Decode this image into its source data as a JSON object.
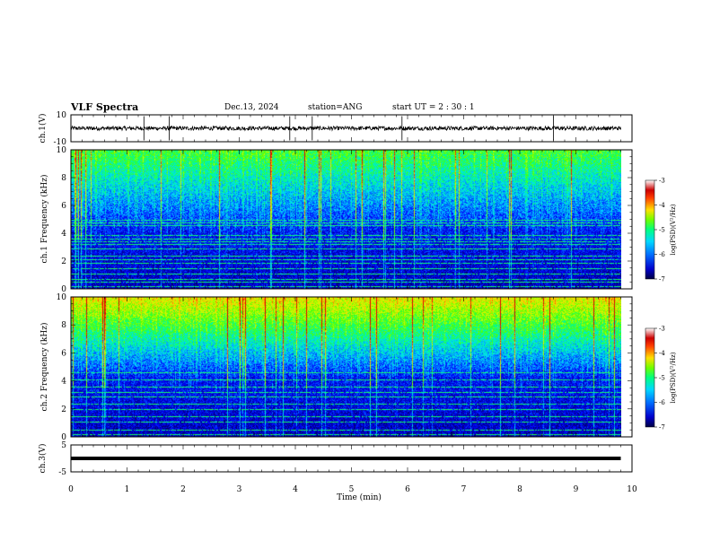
{
  "header": {
    "title": "VLF Spectra",
    "date": "Dec.13, 2024",
    "station": "station=ANG",
    "start": "start  UT =   2 : 30 : 1"
  },
  "chart_data": [
    {
      "type": "line",
      "name": "ch1-waveform",
      "ylabel": "ch.1(V)",
      "ylim": [
        -10,
        10
      ],
      "yticks": [
        "10",
        "-10"
      ],
      "xlim": [
        0,
        10
      ],
      "level": 0,
      "amplitude": 1.5,
      "spike_minutes": [
        1.3,
        1.75,
        3.9,
        4.3,
        5.9,
        8.6
      ]
    },
    {
      "type": "heatmap",
      "name": "ch1-spectrogram",
      "ylabel": "ch.1 Frequency (kHz)",
      "ylim": [
        0,
        10
      ],
      "yticks": [
        "0",
        "2",
        "4",
        "6",
        "8",
        "10"
      ],
      "xlim": [
        0,
        9.8
      ],
      "colorbar": {
        "label": "log(PSD)(V²/Hz)",
        "range": [
          -7,
          -3
        ],
        "ticks": [
          "-3",
          "-4",
          "-5",
          "-6",
          "-7"
        ]
      },
      "lines_khz": [
        0.2,
        0.5,
        0.7,
        1.1,
        1.5,
        1.9,
        2.1,
        2.4,
        2.9,
        3.2,
        3.4,
        3.6,
        3.9,
        4.6,
        4.8,
        5.0
      ]
    },
    {
      "type": "heatmap",
      "name": "ch2-spectrogram",
      "ylabel": "ch.2 Frequency (kHz)",
      "ylim": [
        0,
        10
      ],
      "yticks": [
        "0",
        "2",
        "4",
        "6",
        "8",
        "10"
      ],
      "xlim": [
        0,
        9.8
      ],
      "colorbar": {
        "label": "log(PSD)(V²/Hz)",
        "range": [
          -7,
          -3
        ],
        "ticks": [
          "-3",
          "-4",
          "-5",
          "-6",
          "-7"
        ]
      },
      "lines_khz": [
        0.2,
        0.5,
        1.1,
        1.5,
        2.0,
        2.4,
        2.9,
        3.2,
        3.6,
        4.1,
        4.6
      ]
    },
    {
      "type": "line",
      "name": "ch3-waveform",
      "ylabel": "ch.3(V)",
      "ylim": [
        -5,
        5
      ],
      "yticks": [
        "5",
        "-5"
      ],
      "xlim": [
        0,
        10
      ],
      "level": 0,
      "amplitude": 0.2
    }
  ],
  "xaxis": {
    "label": "Time  (min)",
    "ticks": [
      "0",
      "1",
      "2",
      "3",
      "4",
      "5",
      "6",
      "7",
      "8",
      "9",
      "10"
    ]
  },
  "colors": {
    "spectral": [
      "#000044",
      "#0000aa",
      "#0000ff",
      "#0070ff",
      "#00d8ff",
      "#00ff90",
      "#50ff00",
      "#c8ff00",
      "#ffd000",
      "#ff5000",
      "#e00000",
      "#ffffff"
    ]
  }
}
